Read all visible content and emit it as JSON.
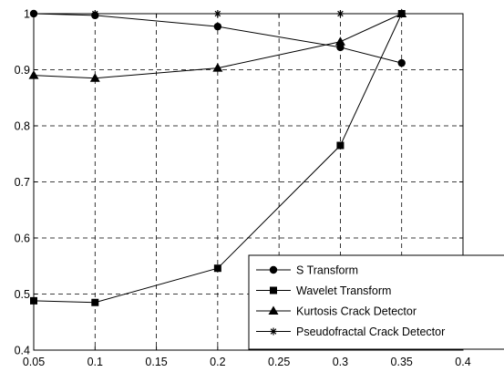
{
  "chart_data": {
    "type": "line",
    "title": "",
    "xlabel": "",
    "ylabel": "",
    "xlim": [
      0.05,
      0.4
    ],
    "ylim": [
      0.4,
      1.0
    ],
    "grid": true,
    "legend_position": "bottom-right",
    "x_ticks": [
      "0.05",
      "0.1",
      "0.15",
      "0.2",
      "0.25",
      "0.3",
      "0.35",
      "0.4"
    ],
    "y_ticks": [
      "0.4",
      "0.5",
      "0.6",
      "0.7",
      "0.8",
      "0.9",
      "1"
    ],
    "series": [
      {
        "name": "S Transform",
        "marker": "circle",
        "x": [
          0.05,
          0.1,
          0.2,
          0.3,
          0.35
        ],
        "values": [
          1.0,
          0.997,
          0.977,
          0.94,
          0.912
        ]
      },
      {
        "name": "Wavelet Transform",
        "marker": "square",
        "x": [
          0.05,
          0.1,
          0.2,
          0.3,
          0.35
        ],
        "values": [
          0.488,
          0.485,
          0.546,
          0.765,
          1.0
        ]
      },
      {
        "name": "Kurtosis Crack Detector",
        "marker": "triangle",
        "x": [
          0.05,
          0.1,
          0.2,
          0.3,
          0.35
        ],
        "values": [
          0.89,
          0.885,
          0.903,
          0.95,
          1.0
        ]
      },
      {
        "name": "Pseudofractal Crack Detector",
        "marker": "star",
        "x": [
          0.05,
          0.1,
          0.2,
          0.3,
          0.35
        ],
        "values": [
          1.0,
          1.0,
          1.0,
          1.0,
          1.0
        ]
      }
    ]
  }
}
